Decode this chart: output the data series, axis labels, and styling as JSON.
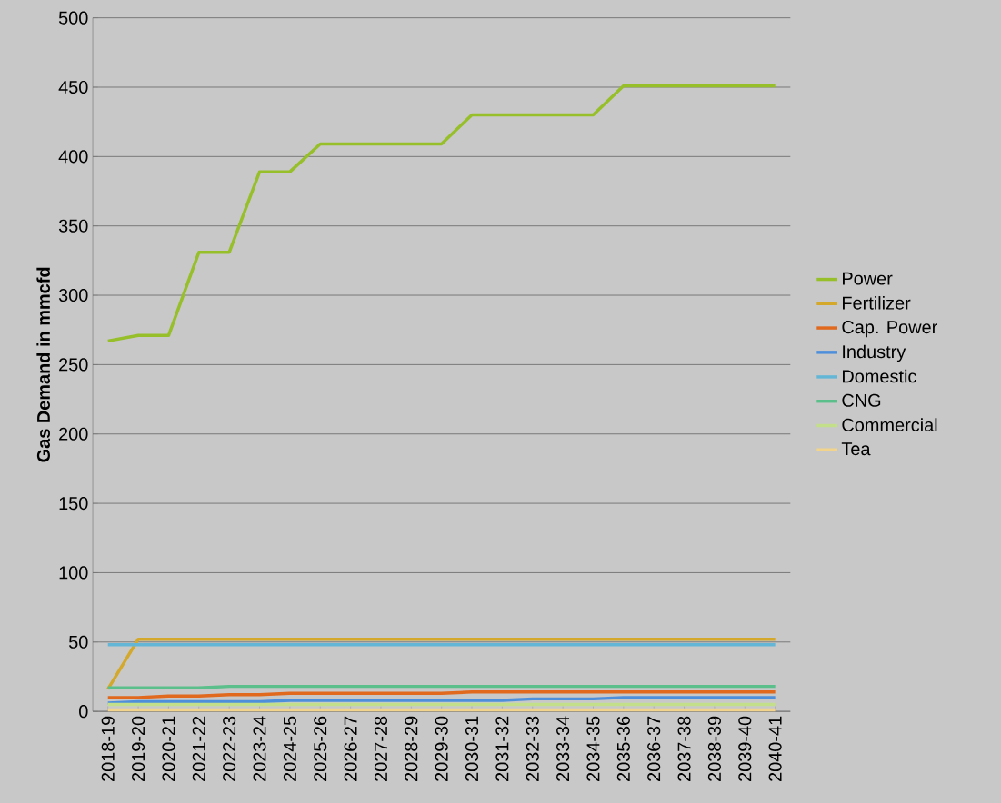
{
  "chart_data": {
    "type": "line",
    "ylabel": "Gas Demand in  mmcfd",
    "categories": [
      "2018-19",
      "2019-20",
      "2020-21",
      "2021-22",
      "2022-23",
      "2023-24",
      "2024-25",
      "2025-26",
      "2026-27",
      "2027-28",
      "2028-29",
      "2029-30",
      "2030-31",
      "2031-32",
      "2032-33",
      "2033-34",
      "2034-35",
      "2035-36",
      "2036-37",
      "2037-38",
      "2038-39",
      "2039-40",
      "2040-41"
    ],
    "series": [
      {
        "name": "Power",
        "color": "#96bf2a",
        "values": [
          267,
          271,
          271,
          331,
          331,
          389,
          389,
          409,
          409,
          409,
          409,
          409,
          430,
          430,
          430,
          430,
          430,
          451,
          451,
          451,
          451,
          451,
          451
        ]
      },
      {
        "name": "Fertilizer",
        "color": "#d4a82a",
        "values": [
          16,
          52,
          52,
          52,
          52,
          52,
          52,
          52,
          52,
          52,
          52,
          52,
          52,
          52,
          52,
          52,
          52,
          52,
          52,
          52,
          52,
          52,
          52
        ]
      },
      {
        "name": "Cap. Power",
        "color": "#e0691e",
        "values": [
          10,
          10,
          11,
          11,
          12,
          12,
          13,
          13,
          13,
          13,
          13,
          13,
          14,
          14,
          14,
          14,
          14,
          14,
          14,
          14,
          14,
          14,
          14
        ]
      },
      {
        "name": "Industry",
        "color": "#4e8fdc",
        "values": [
          6,
          7,
          7,
          7,
          7,
          7,
          8,
          8,
          8,
          8,
          8,
          8,
          8,
          8,
          9,
          9,
          9,
          10,
          10,
          10,
          10,
          10,
          10
        ]
      },
      {
        "name": "Domestic",
        "color": "#63b6d6",
        "values": [
          48,
          48,
          48,
          48,
          48,
          48,
          48,
          48,
          48,
          48,
          48,
          48,
          48,
          48,
          48,
          48,
          48,
          48,
          48,
          48,
          48,
          48,
          48
        ]
      },
      {
        "name": "CNG",
        "color": "#5abf8a",
        "values": [
          17,
          17,
          17,
          17,
          18,
          18,
          18,
          18,
          18,
          18,
          18,
          18,
          18,
          18,
          18,
          18,
          18,
          18,
          18,
          18,
          18,
          18,
          18
        ]
      },
      {
        "name": "Commercial",
        "color": "#c3df8a",
        "values": [
          5,
          5,
          5,
          5,
          5,
          5,
          5,
          5,
          5,
          5,
          5,
          5,
          5,
          5,
          5,
          5,
          5,
          5,
          5,
          5,
          5,
          5,
          5
        ]
      },
      {
        "name": "Tea",
        "color": "#f2d48c",
        "values": [
          1,
          1,
          1,
          1,
          1,
          1,
          1,
          1,
          1,
          1,
          1,
          1,
          1,
          1,
          1,
          1,
          1,
          1,
          1,
          1,
          1,
          1,
          1
        ]
      }
    ],
    "ylim": [
      0,
      500
    ],
    "yticks": [
      0,
      50,
      100,
      150,
      200,
      250,
      300,
      350,
      400,
      450,
      500
    ],
    "grid": "y",
    "legend": "right",
    "marker": "none",
    "line_style": "solid"
  }
}
